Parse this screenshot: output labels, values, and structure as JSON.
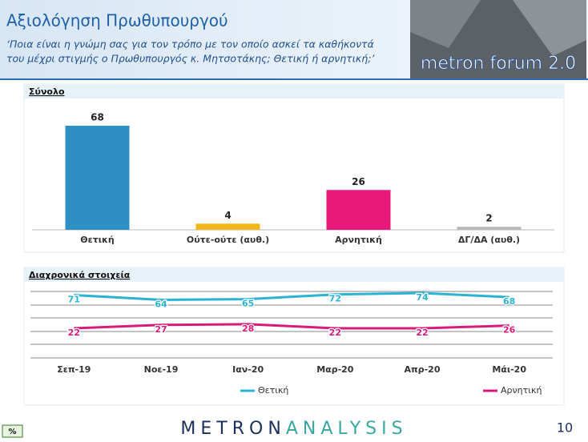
{
  "header": {
    "title": "Αξιολόγηση Πρωθυπουργού",
    "subtitle_lines": [
      "‘Ποια είναι η γνώμη σας για τον τρόπο με τον οποίο ασκεί τα καθήκοντά",
      "του μέχρι στιγμής ο Πρωθυπουργός κ. Μητσοτάκης; Θετική ή αρνητική;’"
    ],
    "logo": "metron forum 2.0"
  },
  "chart_data": [
    {
      "type": "bar",
      "section": "Σύνολο",
      "categories": [
        "Θετική",
        "Ούτε-ούτε (αυθ.)",
        "Αρνητική",
        "ΔΓ/ΔΑ (αυθ.)"
      ],
      "values": [
        68,
        4,
        26,
        2
      ],
      "colors": [
        "#2e8fc4",
        "#f2b51c",
        "#e8197a",
        "#b8b8b8"
      ]
    },
    {
      "type": "line",
      "section": "Διαχρονικά στοιχεία",
      "categories": [
        "Σεπ-19",
        "Νοε-19",
        "Ιαν-20",
        "Μαρ-20",
        "Απρ-20",
        "Μάι-20"
      ],
      "series": [
        {
          "name": "Θετική",
          "color": "#2bb3d4",
          "values": [
            71,
            64,
            65,
            72,
            74,
            68
          ]
        },
        {
          "name": "Αρνητική",
          "color": "#d81b7a",
          "values": [
            22,
            27,
            28,
            22,
            22,
            26
          ]
        }
      ]
    }
  ],
  "footer": {
    "badge": "%",
    "brand_part1": "METRON",
    "brand_part2": "ANALYSIS",
    "page": "10"
  }
}
